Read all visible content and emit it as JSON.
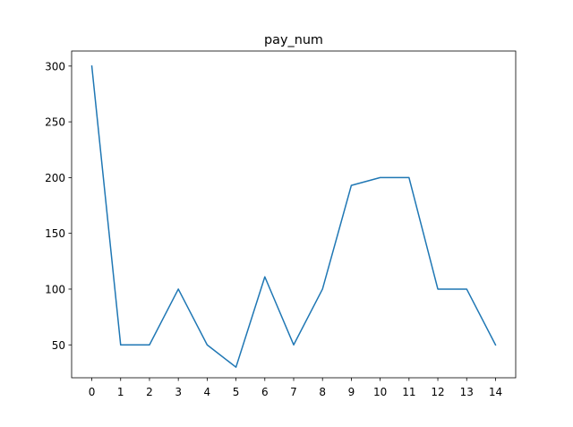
{
  "chart_data": {
    "type": "line",
    "title": "pay_num",
    "xlabel": "",
    "ylabel": "",
    "x": [
      0,
      1,
      2,
      3,
      4,
      5,
      6,
      7,
      8,
      9,
      10,
      11,
      12,
      13,
      14
    ],
    "series": [
      {
        "values": [
          300,
          50,
          50,
          100,
          50,
          30,
          111,
          50,
          100,
          193,
          200,
          200,
          100,
          100,
          50
        ],
        "color": "#1f77b4"
      }
    ],
    "xlim": [
      -0.7,
      14.7
    ],
    "ylim": [
      20.5,
      313.5
    ],
    "xticks": [
      "0",
      "1",
      "2",
      "3",
      "4",
      "5",
      "6",
      "7",
      "8",
      "9",
      "10",
      "11",
      "12",
      "13",
      "14"
    ],
    "yticks": [
      "50",
      "100",
      "150",
      "200",
      "250",
      "300"
    ],
    "grid": false,
    "legend": false
  }
}
